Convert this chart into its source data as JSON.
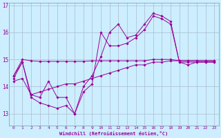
{
  "xlabel": "Windchill (Refroidissement éolien,°C)",
  "bg_color": "#cceeff",
  "line_color": "#990099",
  "grid_color": "#aabbcc",
  "xlim": [
    -0.5,
    23.5
  ],
  "ylim": [
    12.55,
    17.1
  ],
  "yticks": [
    13,
    14,
    15,
    16,
    17
  ],
  "xticks": [
    0,
    1,
    2,
    3,
    4,
    5,
    6,
    7,
    8,
    9,
    10,
    11,
    12,
    13,
    14,
    15,
    16,
    17,
    18,
    19,
    20,
    21,
    22,
    23
  ],
  "series": [
    {
      "x": [
        0,
        1,
        2,
        3,
        4,
        5,
        6,
        7,
        8,
        9,
        10,
        11,
        12,
        13,
        14,
        15,
        16,
        17,
        18,
        19,
        20,
        21,
        22,
        23
      ],
      "y": [
        14.4,
        14.9,
        13.7,
        13.6,
        14.2,
        13.6,
        13.6,
        13.0,
        14.0,
        14.4,
        15.1,
        16.0,
        16.3,
        15.8,
        15.9,
        16.3,
        16.7,
        16.6,
        16.4,
        14.9,
        14.9,
        14.9,
        14.9,
        14.9
      ]
    },
    {
      "x": [
        0,
        1,
        2,
        3,
        4,
        5,
        6,
        7,
        8,
        9,
        10,
        11,
        12,
        13,
        14,
        15,
        16,
        17,
        18,
        19,
        20,
        21,
        22,
        23
      ],
      "y": [
        14.3,
        14.9,
        13.6,
        13.4,
        13.3,
        13.2,
        13.3,
        13.0,
        13.8,
        14.1,
        16.0,
        15.5,
        15.5,
        15.6,
        15.8,
        16.1,
        16.6,
        16.5,
        16.3,
        14.9,
        14.8,
        14.9,
        14.9,
        14.9
      ]
    },
    {
      "x": [
        0,
        1,
        2,
        3,
        4,
        5,
        6,
        7,
        8,
        9,
        10,
        11,
        12,
        13,
        14,
        15,
        16,
        17,
        18,
        19,
        20,
        21,
        22,
        23
      ],
      "y": [
        14.2,
        14.3,
        13.7,
        13.8,
        13.9,
        14.0,
        14.1,
        14.1,
        14.2,
        14.3,
        14.4,
        14.5,
        14.6,
        14.7,
        14.8,
        14.8,
        14.9,
        14.9,
        14.95,
        14.95,
        14.95,
        14.95,
        14.95,
        14.95
      ]
    },
    {
      "x": [
        0,
        1,
        2,
        3,
        4,
        5,
        6,
        7,
        8,
        9,
        10,
        11,
        12,
        13,
        14,
        15,
        16,
        17,
        18,
        19,
        20,
        21,
        22,
        23
      ],
      "y": [
        14.4,
        15.0,
        14.95,
        14.93,
        14.93,
        14.93,
        14.93,
        14.93,
        14.93,
        14.95,
        14.95,
        14.95,
        14.95,
        14.95,
        14.95,
        14.95,
        15.0,
        15.0,
        15.0,
        14.95,
        14.95,
        14.95,
        14.95,
        14.95
      ]
    }
  ]
}
